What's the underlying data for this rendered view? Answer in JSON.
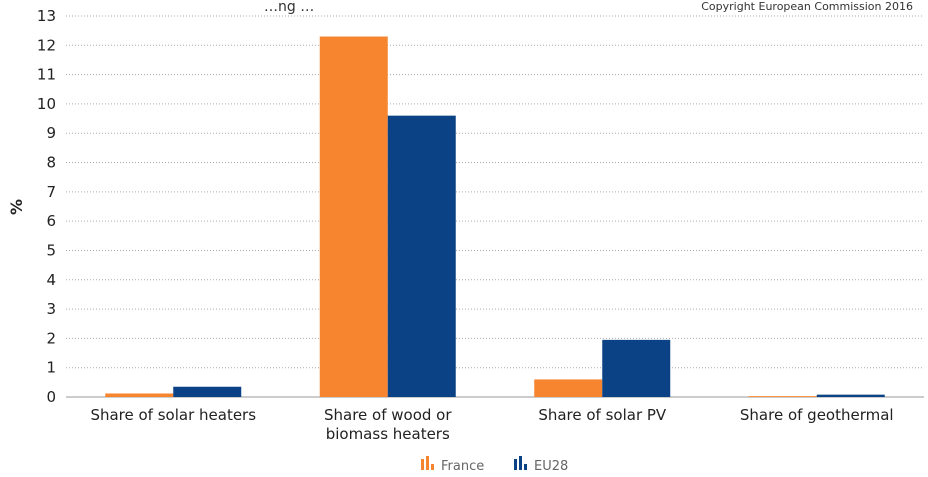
{
  "chart_data": {
    "type": "bar",
    "title": "…ng …",
    "copyright": "Copyright European Commission 2016",
    "xlabel": "",
    "ylabel": "%",
    "ylim": [
      0,
      13
    ],
    "yticks": [
      0,
      1,
      2,
      3,
      4,
      5,
      6,
      7,
      8,
      9,
      10,
      11,
      12,
      13
    ],
    "grid": true,
    "legend_position": "bottom",
    "categories": [
      [
        "Share of solar heaters"
      ],
      [
        "Share of wood or",
        "biomass heaters"
      ],
      [
        "Share of solar PV"
      ],
      [
        "Share of geothermal"
      ]
    ],
    "series": [
      {
        "name": "France",
        "color": "#f7852f",
        "values": [
          0.12,
          12.3,
          0.6,
          0.03
        ]
      },
      {
        "name": "EU28",
        "color": "#0b4285",
        "values": [
          0.35,
          9.6,
          1.95,
          0.08
        ]
      }
    ]
  }
}
